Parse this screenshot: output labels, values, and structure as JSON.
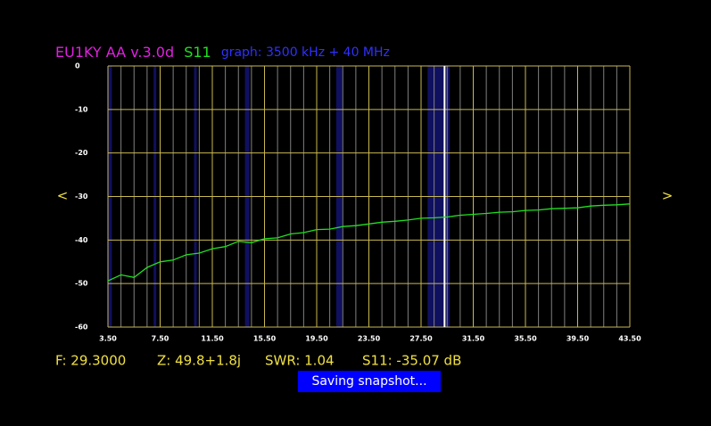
{
  "chart_data": {
    "type": "line",
    "header": [
      {
        "text": "EU1KY AA v.3.0d",
        "color": "#e020e0"
      },
      {
        "text": "S11",
        "color": "#20e020"
      },
      {
        "text": "graph: 3500 kHz + 40 MHz",
        "color": "#3030ff"
      }
    ],
    "x": [
      3.5,
      4.5,
      5.5,
      6.5,
      7.5,
      8.5,
      9.5,
      10.5,
      11.5,
      12.5,
      13.5,
      14.5,
      15.5,
      16.5,
      17.5,
      18.5,
      19.5,
      20.5,
      21.5,
      22.5,
      23.5,
      24.5,
      25.5,
      26.5,
      27.5,
      28.5,
      29.5,
      30.5,
      31.5,
      32.5,
      33.5,
      34.5,
      35.5,
      36.5,
      37.5,
      38.5,
      39.5,
      40.5,
      41.5,
      42.5,
      43.5
    ],
    "series": [
      {
        "name": "S11",
        "color": "#20e020",
        "values": [
          -49.4,
          -48.0,
          -48.6,
          -46.3,
          -45.0,
          -44.6,
          -43.4,
          -43.0,
          -42.0,
          -41.5,
          -40.3,
          -40.6,
          -39.7,
          -39.5,
          -38.6,
          -38.3,
          -37.6,
          -37.5,
          -36.9,
          -36.7,
          -36.3,
          -35.9,
          -35.7,
          -35.4,
          -35.0,
          -34.9,
          -34.7,
          -34.3,
          -34.1,
          -33.9,
          -33.6,
          -33.5,
          -33.2,
          -33.1,
          -32.8,
          -32.7,
          -32.6,
          -32.2,
          -32.0,
          -31.9,
          -31.7
        ]
      }
    ],
    "xlim": [
      3.5,
      43.5
    ],
    "ylim": [
      -60,
      0
    ],
    "xticks": [
      {
        "value": 3.5,
        "label": "3.50"
      },
      {
        "value": 7.5,
        "label": "7.50"
      },
      {
        "value": 11.5,
        "label": "11.50"
      },
      {
        "value": 15.5,
        "label": "15.50"
      },
      {
        "value": 19.5,
        "label": "19.50"
      },
      {
        "value": 23.5,
        "label": "23.50"
      },
      {
        "value": 27.5,
        "label": "27.50"
      },
      {
        "value": 31.5,
        "label": "31.50"
      },
      {
        "value": 35.5,
        "label": "35.50"
      },
      {
        "value": 39.5,
        "label": "39.50"
      },
      {
        "value": 43.5,
        "label": "43.50"
      }
    ],
    "yticks": [
      0,
      -10,
      -20,
      -30,
      -40,
      -50,
      -60
    ],
    "x_minor_step": 1,
    "grid": true,
    "bands": [
      [
        3.5,
        3.8
      ],
      [
        7.0,
        7.2
      ],
      [
        10.1,
        10.15
      ],
      [
        14.0,
        14.35
      ],
      [
        21.0,
        21.45
      ],
      [
        28.0,
        29.7
      ]
    ],
    "cursor": 29.3,
    "nav": [
      "<",
      ">"
    ],
    "status": [
      "F: 29.3000",
      "Z: 49.8+1.8j",
      "SWR: 1.04",
      "S11: -35.07 dB"
    ],
    "notice": "Saving snapshot..."
  }
}
